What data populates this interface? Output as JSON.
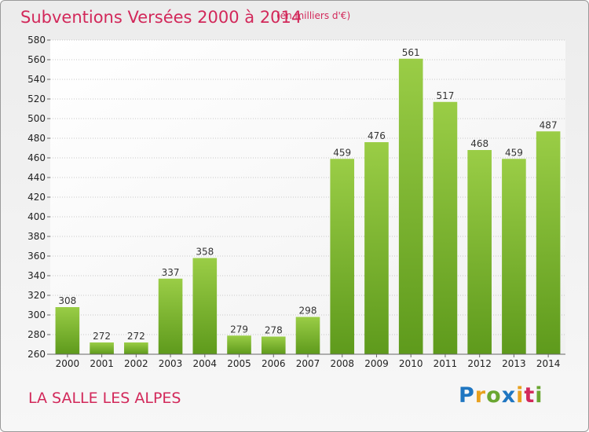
{
  "header": {
    "title": "Subventions Versées 2000 à 2014",
    "subtitle": "(en milliers d'€)"
  },
  "footer": {
    "commune": "LA SALLE LES ALPES",
    "logo": {
      "letters": [
        "P",
        "r",
        "o",
        "x",
        "i",
        "t",
        "i"
      ],
      "colors": [
        "#1f76c1",
        "#e8a11f",
        "#6aa631",
        "#1f76c1",
        "#e8a11f",
        "#d2285a",
        "#6aa631"
      ]
    }
  },
  "chart_data": {
    "type": "bar",
    "title": "Subventions Versées 2000 à 2014",
    "subtitle": "(en milliers d'€)",
    "categories": [
      "2000",
      "2001",
      "2002",
      "2003",
      "2004",
      "2005",
      "2006",
      "2007",
      "2008",
      "2009",
      "2010",
      "2011",
      "2012",
      "2013",
      "2014"
    ],
    "values": [
      308,
      272,
      272,
      337,
      358,
      279,
      278,
      298,
      459,
      476,
      561,
      517,
      468,
      459,
      487
    ],
    "ylim": [
      260,
      580
    ],
    "yticks": [
      260,
      280,
      300,
      320,
      340,
      360,
      380,
      400,
      420,
      440,
      460,
      480,
      500,
      520,
      540,
      560,
      580
    ],
    "grid": true,
    "colors": {
      "bar_light": "#9acd46",
      "bar_dark": "#5e9a1c",
      "grid": "#c8c8c8",
      "axis": "#666666",
      "plot_bg": "#ffffff"
    }
  }
}
